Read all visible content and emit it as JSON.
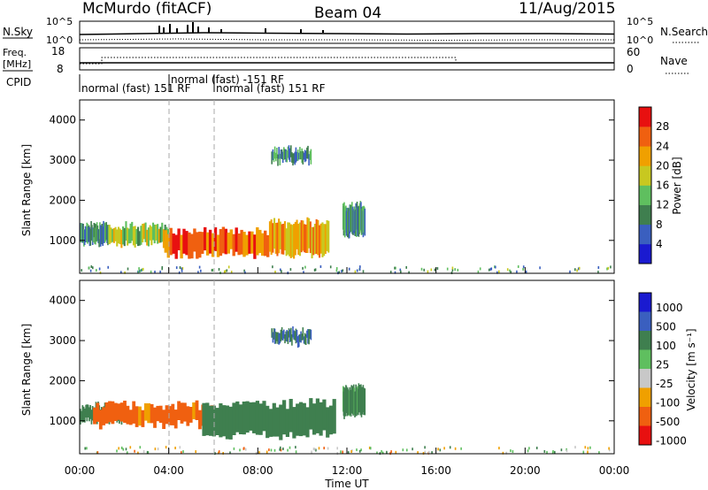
{
  "header": {
    "title": "McMurdo (fitACF)",
    "beam": "Beam 04",
    "date": "11/Aug/2015"
  },
  "strips": {
    "nsky_label": "N.Sky",
    "nsky_ticks": [
      "10^5",
      "10^0"
    ],
    "nsearch_label": "N.Search",
    "nsearch_ticks": [
      "10^5",
      "10^0"
    ],
    "freq_label_1": "Freq.",
    "freq_label_2": "[MHz]",
    "freq_ticks": [
      "18",
      "8"
    ],
    "nave_label": "Nave",
    "nave_ticks": [
      "60",
      "0"
    ],
    "cpid_label": "CPID",
    "cpid_segments": [
      "normal (fast) 151 RF",
      "normal (fast) -151 RF",
      "normal (fast) 151 RF"
    ]
  },
  "chart_data": [
    {
      "type": "heatmap",
      "name_printed": "",
      "ylabel": "Slant Range [km]",
      "xlabel": "Time UT",
      "yticks": [
        "1000",
        "2000",
        "3000",
        "4000"
      ],
      "xticks": [
        "00:00",
        "04:00",
        "08:00",
        "12:00",
        "16:00",
        "20:00",
        "00:00"
      ],
      "ylim": [
        180,
        4500
      ],
      "xlim_hours": [
        0,
        24
      ],
      "colorbar": {
        "label": "Power [dB]",
        "ticks": [
          "4",
          "8",
          "12",
          "16",
          "20",
          "24",
          "28"
        ]
      },
      "echo_regions": [
        {
          "t_start_h": 0.0,
          "t_end_h": 1.3,
          "range_low_km": 900,
          "range_high_km": 1450,
          "power_db": 10
        },
        {
          "t_start_h": 1.3,
          "t_end_h": 4.0,
          "range_low_km": 850,
          "range_high_km": 1400,
          "power_db": 16
        },
        {
          "t_start_h": 3.8,
          "t_end_h": 8.5,
          "range_low_km": 600,
          "range_high_km": 1300,
          "power_db": 26
        },
        {
          "t_start_h": 8.5,
          "t_end_h": 11.2,
          "range_low_km": 600,
          "range_high_km": 1500,
          "power_db": 22
        },
        {
          "t_start_h": 8.6,
          "t_end_h": 10.4,
          "range_low_km": 2900,
          "range_high_km": 3300,
          "power_db": 10
        },
        {
          "t_start_h": 11.8,
          "t_end_h": 12.8,
          "range_low_km": 1100,
          "range_high_km": 1900,
          "power_db": 10
        }
      ]
    },
    {
      "type": "heatmap",
      "name_printed": "",
      "ylabel": "Slant Range [km]",
      "xlabel": "Time UT",
      "yticks": [
        "1000",
        "2000",
        "3000",
        "4000"
      ],
      "xticks": [
        "00:00",
        "04:00",
        "08:00",
        "12:00",
        "16:00",
        "20:00",
        "00:00"
      ],
      "ylim": [
        180,
        4500
      ],
      "xlim_hours": [
        0,
        24
      ],
      "colorbar": {
        "label": "Velocity [m s⁻¹]",
        "ticks": [
          "1000",
          "500",
          "100",
          "25",
          "-25",
          "-100",
          "-500",
          "-1000"
        ]
      },
      "echo_regions": [
        {
          "t_start_h": 0.0,
          "t_end_h": 2.0,
          "range_low_km": 950,
          "range_high_km": 1400,
          "velocity_ms": 300
        },
        {
          "t_start_h": 0.6,
          "t_end_h": 6.0,
          "range_low_km": 850,
          "range_high_km": 1450,
          "velocity_ms": -200
        },
        {
          "t_start_h": 5.5,
          "t_end_h": 11.5,
          "range_low_km": 600,
          "range_high_km": 1500,
          "velocity_ms": 300
        },
        {
          "t_start_h": 8.6,
          "t_end_h": 10.4,
          "range_low_km": 2900,
          "range_high_km": 3300,
          "velocity_ms": 500
        },
        {
          "t_start_h": 11.8,
          "t_end_h": 12.8,
          "range_low_km": 1100,
          "range_high_km": 1900,
          "velocity_ms": 200
        }
      ]
    }
  ],
  "colors": {
    "power": [
      "#1a1ad0",
      "#3a5fbf",
      "#3f7f4f",
      "#5fbf5f",
      "#c8c820",
      "#f0a000",
      "#f06010",
      "#e81010"
    ],
    "velocity": [
      "#e81010",
      "#f06010",
      "#f0a000",
      "#c8c8c8",
      "#5fbf5f",
      "#3f7f4f",
      "#3a5fbf",
      "#1a1ad0"
    ]
  }
}
